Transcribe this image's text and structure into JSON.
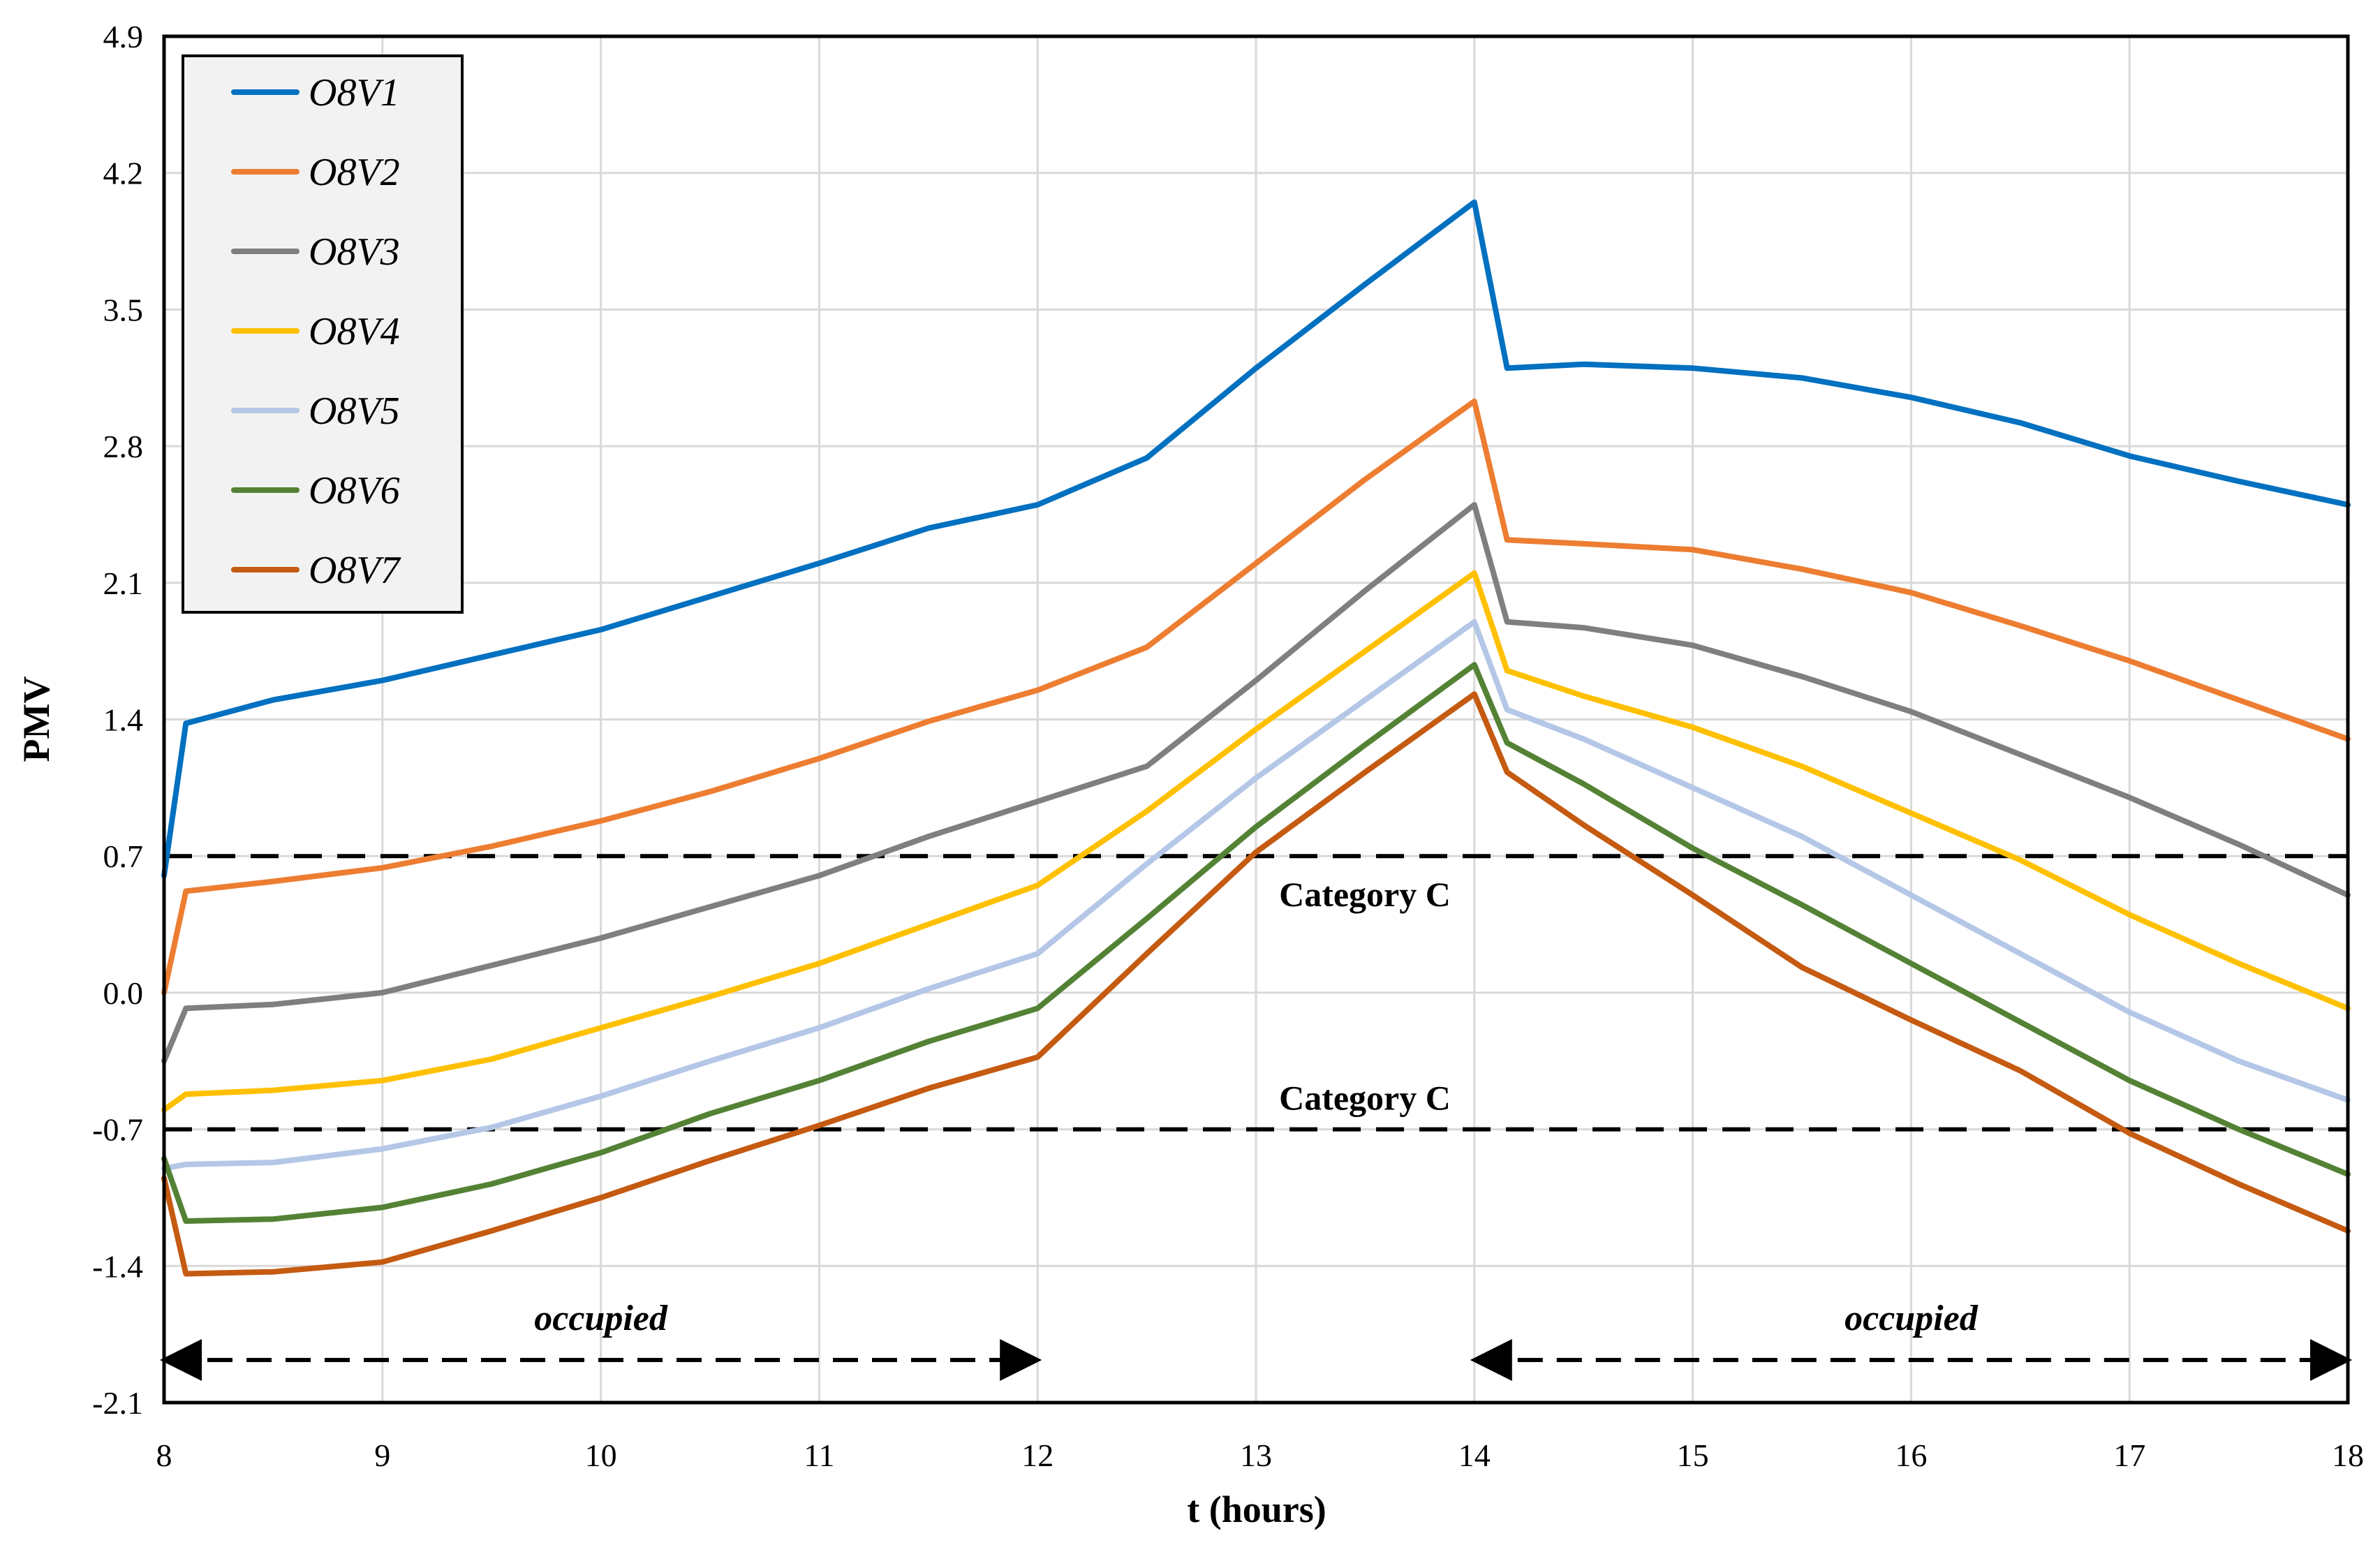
{
  "chart_data": {
    "type": "line",
    "title": "",
    "xlabel": "t (hours)",
    "ylabel": "PMV",
    "xlim": [
      8,
      18
    ],
    "ylim": [
      -2.1,
      4.9
    ],
    "xticks": [
      8,
      9,
      10,
      11,
      12,
      13,
      14,
      15,
      16,
      17,
      18
    ],
    "yticks": [
      "4.9",
      "4.2",
      "3.5",
      "2.8",
      "2.1",
      "1.4",
      "0.7",
      "0.0",
      "-0.7",
      "-1.4",
      "-2.1"
    ],
    "yticks_values": [
      4.9,
      4.2,
      3.5,
      2.8,
      2.1,
      1.4,
      0.7,
      0.0,
      -0.7,
      -1.4,
      -2.1
    ],
    "grid": true,
    "legend": "top-left",
    "x": [
      8.0,
      8.1,
      8.5,
      9.0,
      9.5,
      10.0,
      10.5,
      11.0,
      11.5,
      12.0,
      12.5,
      13.0,
      13.5,
      14.0,
      14.15,
      14.5,
      15.0,
      15.5,
      16.0,
      16.5,
      17.0,
      17.5,
      18.0
    ],
    "series": [
      {
        "name": "O8V1",
        "color": "#0070c0",
        "values": [
          0.6,
          1.38,
          1.5,
          1.6,
          1.73,
          1.86,
          2.03,
          2.2,
          2.38,
          2.5,
          2.74,
          3.2,
          3.63,
          4.05,
          3.2,
          3.22,
          3.2,
          3.15,
          3.05,
          2.92,
          2.75,
          2.62,
          2.5
        ]
      },
      {
        "name": "O8V2",
        "color": "#ed7d31",
        "values": [
          0.0,
          0.52,
          0.57,
          0.64,
          0.75,
          0.88,
          1.03,
          1.2,
          1.39,
          1.55,
          1.77,
          2.2,
          2.63,
          3.03,
          2.32,
          2.3,
          2.27,
          2.17,
          2.05,
          1.88,
          1.7,
          1.5,
          1.3
        ]
      },
      {
        "name": "O8V3",
        "color": "#7f7f7f",
        "values": [
          -0.35,
          -0.08,
          -0.06,
          0.0,
          0.14,
          0.28,
          0.44,
          0.6,
          0.8,
          0.98,
          1.16,
          1.6,
          2.06,
          2.5,
          1.9,
          1.87,
          1.78,
          1.62,
          1.44,
          1.22,
          1.0,
          0.76,
          0.5
        ]
      },
      {
        "name": "O8V4",
        "color": "#ffc000",
        "values": [
          -0.6,
          -0.52,
          -0.5,
          -0.45,
          -0.34,
          -0.18,
          -0.02,
          0.15,
          0.35,
          0.55,
          0.93,
          1.35,
          1.75,
          2.15,
          1.65,
          1.52,
          1.36,
          1.16,
          0.92,
          0.68,
          0.4,
          0.15,
          -0.08
        ]
      },
      {
        "name": "O8V5",
        "color": "#b4c7e7",
        "values": [
          -0.9,
          -0.88,
          -0.87,
          -0.8,
          -0.69,
          -0.53,
          -0.35,
          -0.18,
          0.02,
          0.2,
          0.66,
          1.1,
          1.5,
          1.9,
          1.45,
          1.3,
          1.05,
          0.8,
          0.5,
          0.2,
          -0.1,
          -0.35,
          -0.55
        ]
      },
      {
        "name": "O8V6",
        "color": "#548235",
        "values": [
          -0.85,
          -1.17,
          -1.16,
          -1.1,
          -0.98,
          -0.82,
          -0.62,
          -0.45,
          -0.25,
          -0.08,
          0.38,
          0.85,
          1.27,
          1.68,
          1.28,
          1.07,
          0.74,
          0.45,
          0.15,
          -0.15,
          -0.45,
          -0.7,
          -0.93
        ]
      },
      {
        "name": "O8V7",
        "color": "#c55a11",
        "values": [
          -0.95,
          -1.44,
          -1.43,
          -1.38,
          -1.22,
          -1.05,
          -0.86,
          -0.68,
          -0.49,
          -0.33,
          0.2,
          0.72,
          1.13,
          1.53,
          1.13,
          0.86,
          0.5,
          0.13,
          -0.14,
          -0.4,
          -0.72,
          -0.98,
          -1.22
        ]
      }
    ],
    "reference_lines": [
      {
        "y": 0.7,
        "label": "Category C"
      },
      {
        "y": -0.7,
        "label": "Category C"
      }
    ],
    "periods": [
      {
        "label": "occupied",
        "from": 8,
        "to": 12
      },
      {
        "label": "occupied",
        "from": 14,
        "to": 18
      }
    ]
  }
}
